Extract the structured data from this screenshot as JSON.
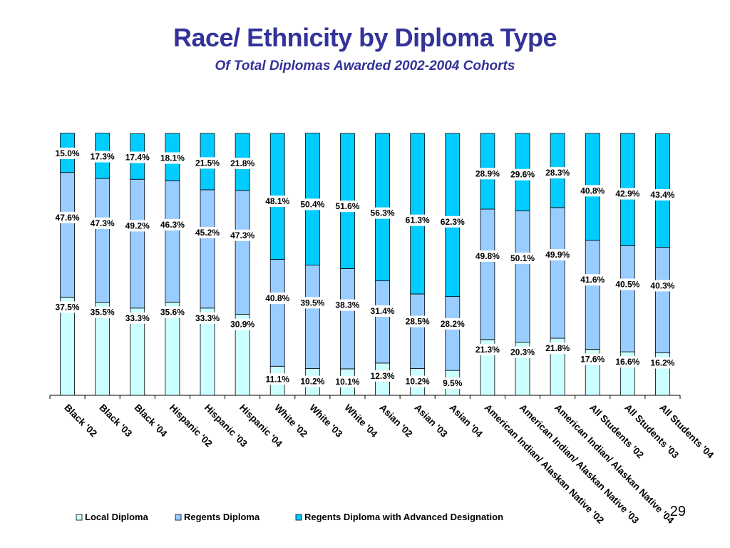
{
  "title": "Race/ Ethnicity by Diploma Type",
  "subtitle": "Of Total Diplomas Awarded 2002-2004 Cohorts",
  "page_number": "29",
  "colors": {
    "title": "#333399",
    "local": "#CCFFFF",
    "regents": "#99CCFF",
    "advanced": "#00CCFF"
  },
  "chart_data": {
    "type": "bar",
    "stacked": "percent",
    "categories": [
      "Black '02",
      "Black '03",
      "Black '04",
      "Hispanic '02",
      "Hispanic '03",
      "Hispanic '04",
      "White '02",
      "White '03",
      "White '04",
      "Asian '02",
      "Asian '03",
      "Asian '04",
      "American Indian/ Alaskan Native '02",
      "American Indian/ Alaskan Native '03",
      "American Indian/ Alaskan Native '04",
      "All Students '02",
      "All Students '03",
      "All Students '04"
    ],
    "series": [
      {
        "name": "Local Diploma",
        "values": [
          37.5,
          35.5,
          33.3,
          35.6,
          33.3,
          30.9,
          11.1,
          10.2,
          10.1,
          12.3,
          10.2,
          9.5,
          21.3,
          20.3,
          21.8,
          17.6,
          16.6,
          16.2
        ],
        "labels": [
          "37.5%",
          "35.5%",
          "33.3%",
          "35.6%",
          "33.3%",
          "30.9%",
          "11.1%",
          "10.2%",
          "10.1%",
          "12.3%",
          "10.2%",
          "9.5%",
          "21.3%",
          "20.3%",
          "21.8%",
          "17.6%",
          "16.6%",
          "16.2%"
        ]
      },
      {
        "name": "Regents Diploma",
        "values": [
          47.6,
          47.3,
          49.2,
          46.3,
          45.2,
          47.3,
          40.8,
          39.5,
          38.3,
          31.4,
          28.5,
          28.2,
          49.8,
          50.1,
          49.9,
          41.6,
          40.5,
          40.3
        ],
        "labels": [
          "47.6%",
          "47.3%",
          "49.2%",
          "46.3%",
          "45.2%",
          "47.3%",
          "40.8%",
          "39.5%",
          "38.3%",
          "31.4%",
          "28.5%",
          "28.2%",
          "49.8%",
          "50.1%",
          "49.9%",
          "41.6%",
          "40.5%",
          "40.3%"
        ]
      },
      {
        "name": "Regents Diploma with Advanced Designation",
        "values": [
          15.0,
          17.3,
          17.4,
          18.1,
          21.5,
          21.8,
          48.1,
          50.4,
          51.6,
          56.3,
          61.3,
          62.3,
          28.9,
          29.6,
          28.3,
          40.8,
          42.9,
          43.4
        ],
        "labels": [
          "15.0%",
          "17.3%",
          "17.4%",
          "18.1%",
          "21.5%",
          "21.8%",
          "48.1%",
          "50.4%",
          "51.6%",
          "56.3%",
          "61.3%",
          "62.3%",
          "28.9%",
          "29.6%",
          "28.3%",
          "40.8%",
          "42.9%",
          "43.4%"
        ]
      }
    ],
    "ylim": [
      0,
      100
    ],
    "grid": false,
    "legend": "bottom"
  }
}
